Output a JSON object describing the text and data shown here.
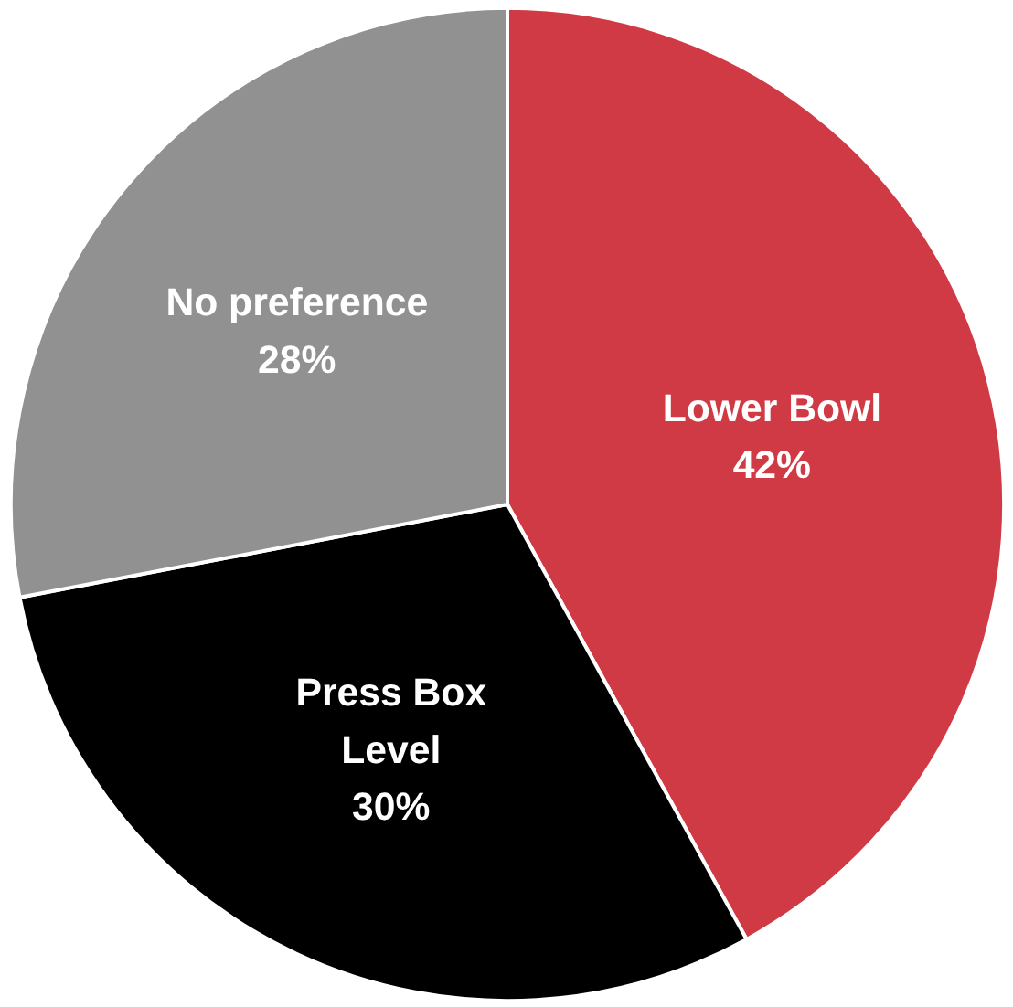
{
  "chart_data": {
    "type": "pie",
    "categories": [
      "Lower Bowl",
      "Press Box Level",
      "No preference"
    ],
    "values": [
      42,
      30,
      28
    ],
    "colors": [
      "#cf3a45",
      "#000000",
      "#919191"
    ],
    "value_labels": [
      "42%",
      "30%",
      "28%"
    ]
  }
}
